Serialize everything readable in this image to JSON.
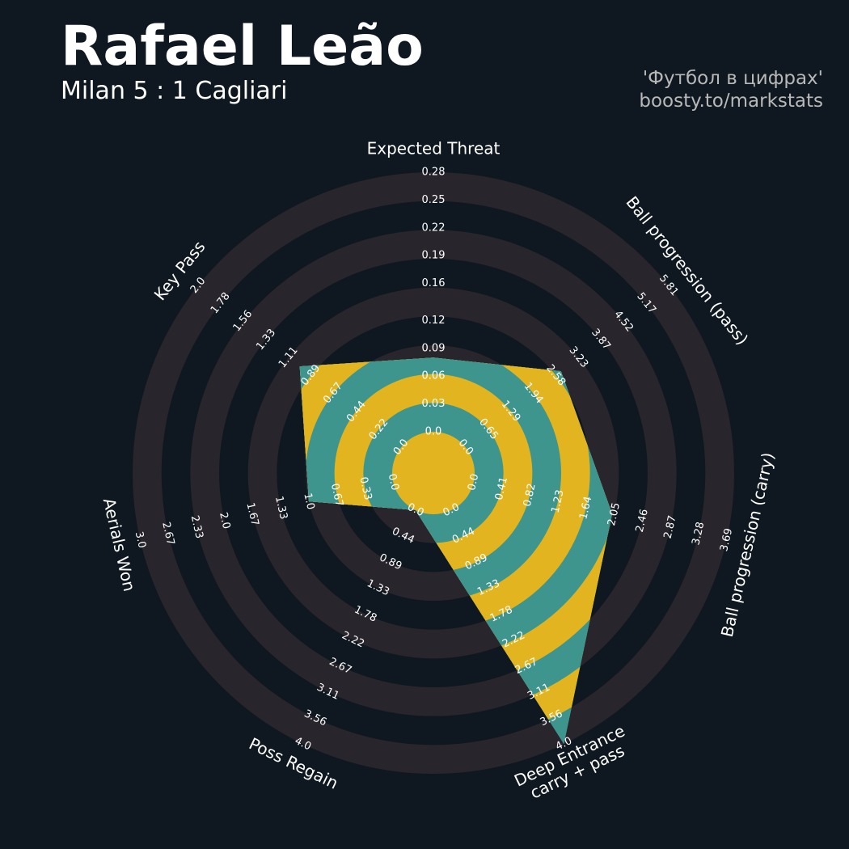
{
  "chart_data": {
    "type": "radar",
    "title": "Rafael Leão",
    "subtitle": "Milan 5 : 1 Cagliari",
    "credits": [
      "'Футбол в цифрах'",
      "boosty.to/markstats"
    ],
    "ring_colors": [
      "#28252c",
      "#0f1820"
    ],
    "params": [
      {
        "name": "Expected Threat",
        "lim": [
          0,
          0.28
        ],
        "ticks": [
          {
            "value": 0,
            "label": "0.0"
          },
          0.03,
          0.06,
          0.09,
          0.12,
          0.16,
          0.19,
          0.22,
          0.25,
          0.28
        ]
      },
      {
        "name": "Ball progression (pass)",
        "lim": [
          0,
          5.81
        ],
        "ticks": [
          {
            "value": 0,
            "label": "0.0"
          },
          0.65,
          1.29,
          1.94,
          2.58,
          3.23,
          3.87,
          4.52,
          5.17,
          5.81
        ]
      },
      {
        "name": "Ball progression (carry)",
        "lim": [
          0,
          3.69
        ],
        "ticks": [
          {
            "value": 0,
            "label": "0.0"
          },
          0.41,
          0.82,
          1.23,
          1.64,
          2.05,
          2.46,
          2.87,
          3.28,
          3.69
        ]
      },
      {
        "name": "Deep Entrance\ncarry + pass",
        "lim": [
          0,
          4
        ],
        "ticks": [
          {
            "value": 0,
            "label": "0.0"
          },
          0.44,
          0.89,
          1.33,
          1.78,
          2.22,
          2.67,
          3.11,
          3.56,
          {
            "value": 4,
            "label": "4.0"
          }
        ]
      },
      {
        "name": "Poss Regain",
        "lim": [
          0,
          4
        ],
        "ticks": [
          {
            "value": 0,
            "label": "0.0"
          },
          0.44,
          0.89,
          1.33,
          1.78,
          2.22,
          2.67,
          3.11,
          3.56,
          {
            "value": 4,
            "label": "4.0"
          }
        ]
      },
      {
        "name": "Aerials Won",
        "lim": [
          0,
          3
        ],
        "ticks": [
          {
            "value": 0,
            "label": "0.0"
          },
          0.33,
          0.67,
          {
            "value": 1,
            "label": "1.0"
          },
          1.33,
          1.67,
          {
            "value": 2,
            "label": "2.0"
          },
          2.33,
          2.67,
          {
            "value": 3,
            "label": "3.0"
          }
        ]
      },
      {
        "name": "Key Pass",
        "lim": [
          0,
          2
        ],
        "ticks": [
          {
            "value": 0,
            "label": "0.0"
          },
          0.22,
          0.44,
          0.67,
          0.89,
          1.11,
          1.33,
          1.56,
          1.78,
          {
            "value": 2,
            "label": "2.0"
          }
        ]
      }
    ],
    "series": [
      {
        "colors": [
          "#3e958e",
          "#e2b520"
        ],
        "values": [
          0.08,
          2.73,
          2.02,
          4,
          0,
          1.0,
          1.0
        ]
      }
    ]
  }
}
